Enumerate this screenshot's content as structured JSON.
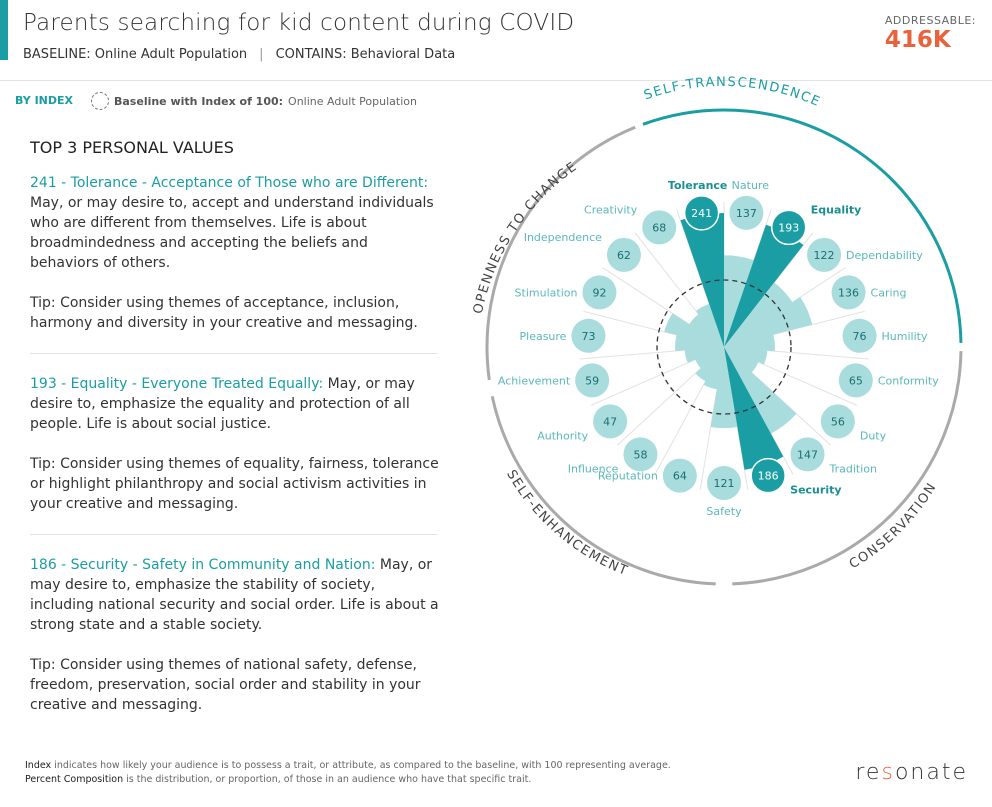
{
  "header": {
    "title": "Parents searching for kid content during COVID",
    "baseline": "BASELINE: Online Adult Population",
    "contains": "CONTAINS: Behavioral Data",
    "separator": "|",
    "addressable_label": "ADDRESSABLE:",
    "addressable_value": "416K"
  },
  "controls": {
    "by_index": "BY INDEX",
    "legend_bold": "Baseline with Index of 100:",
    "legend_text": "Online Adult Population"
  },
  "left": {
    "heading": "TOP 3 PERSONAL VALUES",
    "values": [
      {
        "head": "241 - Tolerance - Acceptance of Those who are Different:",
        "body": " May, or may desire to, accept and understand individuals who are different from themselves. Life is about broadmindedness and accepting the beliefs and behaviors of others.",
        "tip": "Tip: Consider using themes of acceptance, inclusion, harmony and diversity in your creative and messaging."
      },
      {
        "head": "193 - Equality - Everyone Treated Equally:",
        "body": " May, or may desire to, emphasize the equality and protection of all people. Life is about social justice.",
        "tip": "Tip: Consider using themes of equality, fairness, tolerance or highlight philanthropy and social activism activities in your creative and messaging."
      },
      {
        "head": "186 - Security - Safety in Community and Nation:",
        "body": " May, or may desire to, emphasize the stability of society, including national security and social order. Life is about a strong state and a stable society.",
        "tip": "Tip: Consider using themes of national safety, defense, freedom, preservation, social order and stability in your creative and messaging."
      }
    ]
  },
  "chart_data": {
    "type": "radial-bar",
    "baseline": 100,
    "highlight_color": "#1a9ea3",
    "base_color": "#a8dcdd",
    "groups": [
      "SELF-TRANSCENDENCE",
      "CONSERVATION",
      "SELF-ENHANCEMENT",
      "OPENNESS TO CHANGE"
    ],
    "items": [
      {
        "label": "Nature",
        "value": 137,
        "top": false
      },
      {
        "label": "Equality",
        "value": 193,
        "top": true
      },
      {
        "label": "Dependability",
        "value": 122,
        "top": false
      },
      {
        "label": "Caring",
        "value": 136,
        "top": false
      },
      {
        "label": "Humility",
        "value": 76,
        "top": false
      },
      {
        "label": "Conformity",
        "value": 65,
        "top": false
      },
      {
        "label": "Duty",
        "value": 56,
        "top": false
      },
      {
        "label": "Tradition",
        "value": 147,
        "top": false
      },
      {
        "label": "Security",
        "value": 186,
        "top": true
      },
      {
        "label": "Safety",
        "value": 121,
        "top": false
      },
      {
        "label": "Reputation",
        "value": 64,
        "top": false
      },
      {
        "label": "Influence",
        "value": 58,
        "top": false
      },
      {
        "label": "Authority",
        "value": 47,
        "top": false
      },
      {
        "label": "Achievement",
        "value": 59,
        "top": false
      },
      {
        "label": "Pleasure",
        "value": 73,
        "top": false
      },
      {
        "label": "Stimulation",
        "value": 92,
        "top": false
      },
      {
        "label": "Independence",
        "value": 62,
        "top": false
      },
      {
        "label": "Creativity",
        "value": 68,
        "top": false
      },
      {
        "label": "Tolerance",
        "value": 241,
        "top": true
      }
    ]
  },
  "footer": {
    "index_bold": "Index",
    "index_text": " indicates how likely your audience is to possess a trait, or attribute, as compared to the baseline, with 100 representing average.",
    "pc_bold": "Percent Composition",
    "pc_text": " is the distribution, or proportion, of those in an audience who have that specific trait.",
    "logo": "resonate"
  }
}
